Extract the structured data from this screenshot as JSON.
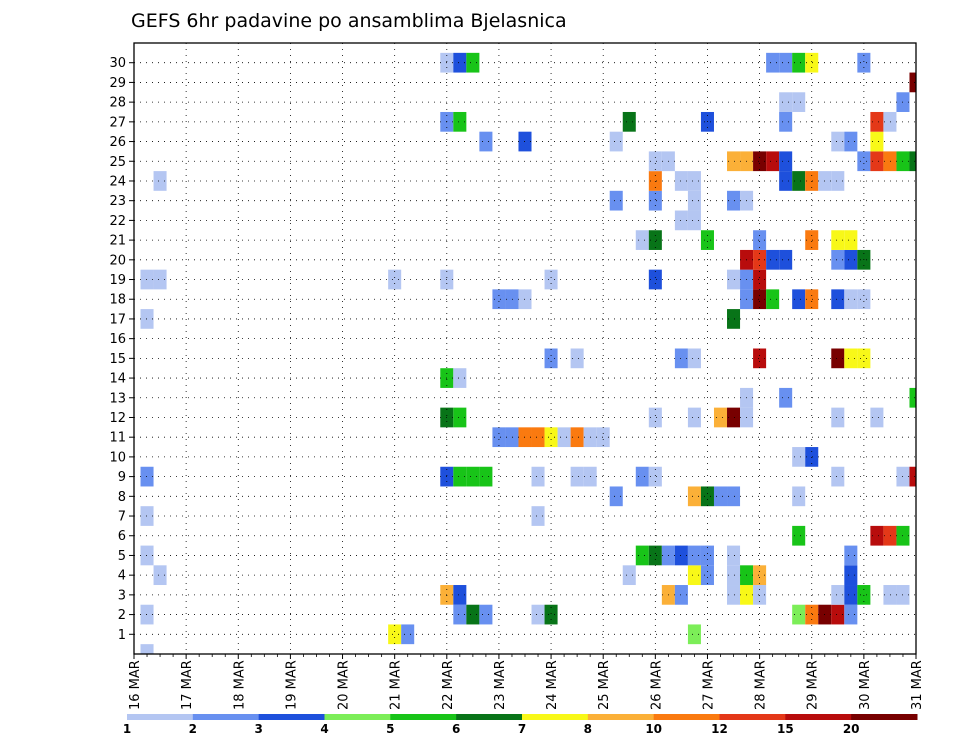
{
  "chart_data": {
    "type": "heatmap",
    "title": "GEFS 6hr padavine po ansamblima Bjelasnica",
    "xlabel": "",
    "ylabel": "",
    "x_range": [
      "16 MAR 00z",
      "31 MAR 00z"
    ],
    "x_step": "6hr",
    "x_ticks": [
      "16 MAR",
      "17 MAR",
      "18 MAR",
      "19 MAR",
      "20 MAR",
      "21 MAR",
      "22 MAR",
      "23 MAR",
      "24 MAR",
      "25 MAR",
      "26 MAR",
      "27 MAR",
      "28 MAR",
      "29 MAR",
      "30 MAR",
      "31 MAR"
    ],
    "y_ticks": [
      "1",
      "2",
      "3",
      "4",
      "5",
      "6",
      "7",
      "8",
      "9",
      "10",
      "11",
      "12",
      "13",
      "14",
      "15",
      "16",
      "17",
      "18",
      "19",
      "20",
      "21",
      "22",
      "23",
      "24",
      "25",
      "26",
      "27",
      "28",
      "29",
      "30"
    ],
    "legend_placement": "bottom",
    "grid": "dotted",
    "colorbar": {
      "labels": [
        "1",
        "2",
        "3",
        "4",
        "5",
        "6",
        "7",
        "8",
        "10",
        "12",
        "15",
        "20"
      ],
      "colors": [
        "#b4c6f2",
        "#6890f0",
        "#1e50dc",
        "#7cee58",
        "#18c418",
        "#087418",
        "#f8f818",
        "#fbb038",
        "#fa7a10",
        "#e43818",
        "#b80c0c",
        "#780000"
      ]
    },
    "cells": [
      [
        "16 MAR 06z",
        0,
        1
      ],
      [
        "21 MAR 00z",
        1,
        7
      ],
      [
        "21 MAR 06z",
        1,
        2
      ],
      [
        "26 MAR 18z",
        1,
        4
      ],
      [
        "16 MAR 06z",
        2,
        1
      ],
      [
        "22 MAR 06z",
        2,
        2
      ],
      [
        "22 MAR 12z",
        2,
        6
      ],
      [
        "22 MAR 18z",
        2,
        2
      ],
      [
        "23 MAR 18z",
        2,
        1
      ],
      [
        "24 MAR 00z",
        2,
        6
      ],
      [
        "28 MAR 18z",
        2,
        4
      ],
      [
        "29 MAR 00z",
        2,
        10
      ],
      [
        "29 MAR 06z",
        2,
        20
      ],
      [
        "29 MAR 12z",
        2,
        15
      ],
      [
        "29 MAR 18z",
        2,
        2
      ],
      [
        "22 MAR 00z",
        3,
        8
      ],
      [
        "22 MAR 06z",
        3,
        3
      ],
      [
        "26 MAR 06z",
        3,
        8
      ],
      [
        "26 MAR 12z",
        3,
        2
      ],
      [
        "27 MAR 12z",
        3,
        1
      ],
      [
        "27 MAR 18z",
        3,
        7
      ],
      [
        "28 MAR 00z",
        3,
        1
      ],
      [
        "29 MAR 12z",
        3,
        1
      ],
      [
        "29 MAR 18z",
        3,
        3
      ],
      [
        "30 MAR 00z",
        3,
        5
      ],
      [
        "30 MAR 12z",
        3,
        1
      ],
      [
        "30 MAR 18z",
        3,
        1
      ],
      [
        "16 MAR 12z",
        4,
        1
      ],
      [
        "25 MAR 12z",
        4,
        1
      ],
      [
        "26 MAR 18z",
        4,
        7
      ],
      [
        "27 MAR 00z",
        4,
        2
      ],
      [
        "27 MAR 12z",
        4,
        1
      ],
      [
        "27 MAR 18z",
        4,
        5
      ],
      [
        "28 MAR 00z",
        4,
        8
      ],
      [
        "29 MAR 18z",
        4,
        3
      ],
      [
        "16 MAR 06z",
        5,
        1
      ],
      [
        "25 MAR 18z",
        5,
        5
      ],
      [
        "26 MAR 00z",
        5,
        6
      ],
      [
        "26 MAR 06z",
        5,
        2
      ],
      [
        "26 MAR 12z",
        5,
        3
      ],
      [
        "26 MAR 18z",
        5,
        2
      ],
      [
        "27 MAR 00z",
        5,
        2
      ],
      [
        "27 MAR 12z",
        5,
        1
      ],
      [
        "29 MAR 18z",
        5,
        2
      ],
      [
        "28 MAR 18z",
        6,
        5
      ],
      [
        "30 MAR 06z",
        6,
        15
      ],
      [
        "30 MAR 12z",
        6,
        12
      ],
      [
        "30 MAR 18z",
        6,
        5
      ],
      [
        "16 MAR 06z",
        7,
        1
      ],
      [
        "23 MAR 18z",
        7,
        1
      ],
      [
        "25 MAR 06z",
        8,
        2
      ],
      [
        "26 MAR 18z",
        8,
        8
      ],
      [
        "27 MAR 00z",
        8,
        6
      ],
      [
        "27 MAR 06z",
        8,
        2
      ],
      [
        "27 MAR 12z",
        8,
        2
      ],
      [
        "28 MAR 18z",
        8,
        1
      ],
      [
        "16 MAR 06z",
        9,
        2
      ],
      [
        "22 MAR 00z",
        9,
        3
      ],
      [
        "22 MAR 06z",
        9,
        5
      ],
      [
        "22 MAR 12z",
        9,
        5
      ],
      [
        "22 MAR 18z",
        9,
        5
      ],
      [
        "23 MAR 18z",
        9,
        1
      ],
      [
        "24 MAR 12z",
        9,
        1
      ],
      [
        "24 MAR 18z",
        9,
        1
      ],
      [
        "25 MAR 18z",
        9,
        2
      ],
      [
        "26 MAR 00z",
        9,
        1
      ],
      [
        "29 MAR 12z",
        9,
        1
      ],
      [
        "30 MAR 18z",
        9,
        1
      ],
      [
        "31 MAR 00z",
        9,
        15
      ],
      [
        "28 MAR 18z",
        10,
        1
      ],
      [
        "29 MAR 00z",
        10,
        3
      ],
      [
        "23 MAR 00z",
        11,
        2
      ],
      [
        "23 MAR 06z",
        11,
        2
      ],
      [
        "23 MAR 12z",
        11,
        10
      ],
      [
        "23 MAR 18z",
        11,
        10
      ],
      [
        "24 MAR 00z",
        11,
        7
      ],
      [
        "24 MAR 06z",
        11,
        1
      ],
      [
        "24 MAR 12z",
        11,
        10
      ],
      [
        "24 MAR 18z",
        11,
        1
      ],
      [
        "25 MAR 00z",
        11,
        1
      ],
      [
        "22 MAR 00z",
        12,
        6
      ],
      [
        "22 MAR 06z",
        12,
        5
      ],
      [
        "26 MAR 00z",
        12,
        1
      ],
      [
        "26 MAR 18z",
        12,
        1
      ],
      [
        "27 MAR 06z",
        12,
        8
      ],
      [
        "27 MAR 12z",
        12,
        20
      ],
      [
        "27 MAR 18z",
        12,
        1
      ],
      [
        "29 MAR 12z",
        12,
        1
      ],
      [
        "30 MAR 06z",
        12,
        1
      ],
      [
        "27 MAR 18z",
        13,
        1
      ],
      [
        "28 MAR 12z",
        13,
        2
      ],
      [
        "31 MAR 00z",
        13,
        5
      ],
      [
        "22 MAR 00z",
        14,
        5
      ],
      [
        "22 MAR 06z",
        14,
        1
      ],
      [
        "24 MAR 00z",
        15,
        2
      ],
      [
        "24 MAR 12z",
        15,
        1
      ],
      [
        "26 MAR 12z",
        15,
        2
      ],
      [
        "26 MAR 18z",
        15,
        1
      ],
      [
        "28 MAR 00z",
        15,
        15
      ],
      [
        "29 MAR 12z",
        15,
        20
      ],
      [
        "29 MAR 18z",
        15,
        7
      ],
      [
        "30 MAR 00z",
        15,
        7
      ],
      [
        "16 MAR 06z",
        17,
        1
      ],
      [
        "27 MAR 12z",
        17,
        6
      ],
      [
        "23 MAR 00z",
        18,
        2
      ],
      [
        "23 MAR 06z",
        18,
        2
      ],
      [
        "23 MAR 12z",
        18,
        1
      ],
      [
        "27 MAR 18z",
        18,
        2
      ],
      [
        "28 MAR 00z",
        18,
        20
      ],
      [
        "28 MAR 06z",
        18,
        5
      ],
      [
        "28 MAR 18z",
        18,
        3
      ],
      [
        "29 MAR 00z",
        18,
        10
      ],
      [
        "29 MAR 12z",
        18,
        3
      ],
      [
        "29 MAR 18z",
        18,
        1
      ],
      [
        "30 MAR 00z",
        18,
        1
      ],
      [
        "16 MAR 06z",
        19,
        1
      ],
      [
        "16 MAR 12z",
        19,
        1
      ],
      [
        "21 MAR 00z",
        19,
        1
      ],
      [
        "22 MAR 00z",
        19,
        1
      ],
      [
        "24 MAR 00z",
        19,
        1
      ],
      [
        "26 MAR 00z",
        19,
        3
      ],
      [
        "27 MAR 12z",
        19,
        1
      ],
      [
        "27 MAR 18z",
        19,
        2
      ],
      [
        "28 MAR 00z",
        19,
        15
      ],
      [
        "27 MAR 18z",
        20,
        15
      ],
      [
        "28 MAR 00z",
        20,
        12
      ],
      [
        "28 MAR 06z",
        20,
        3
      ],
      [
        "28 MAR 12z",
        20,
        3
      ],
      [
        "29 MAR 12z",
        20,
        2
      ],
      [
        "29 MAR 18z",
        20,
        3
      ],
      [
        "30 MAR 00z",
        20,
        6
      ],
      [
        "25 MAR 18z",
        21,
        1
      ],
      [
        "26 MAR 00z",
        21,
        6
      ],
      [
        "27 MAR 00z",
        21,
        5
      ],
      [
        "28 MAR 00z",
        21,
        2
      ],
      [
        "29 MAR 00z",
        21,
        10
      ],
      [
        "29 MAR 12z",
        21,
        7
      ],
      [
        "29 MAR 18z",
        21,
        7
      ],
      [
        "26 MAR 12z",
        22,
        1
      ],
      [
        "26 MAR 18z",
        22,
        1
      ],
      [
        "25 MAR 06z",
        23,
        2
      ],
      [
        "26 MAR 00z",
        23,
        2
      ],
      [
        "26 MAR 18z",
        23,
        1
      ],
      [
        "27 MAR 12z",
        23,
        2
      ],
      [
        "27 MAR 18z",
        23,
        1
      ],
      [
        "16 MAR 12z",
        24,
        1
      ],
      [
        "26 MAR 00z",
        24,
        10
      ],
      [
        "26 MAR 12z",
        24,
        1
      ],
      [
        "26 MAR 18z",
        24,
        1
      ],
      [
        "28 MAR 12z",
        24,
        3
      ],
      [
        "28 MAR 18z",
        24,
        6
      ],
      [
        "29 MAR 00z",
        24,
        10
      ],
      [
        "29 MAR 06z",
        24,
        1
      ],
      [
        "29 MAR 12z",
        24,
        1
      ],
      [
        "26 MAR 00z",
        25,
        1
      ],
      [
        "26 MAR 06z",
        25,
        1
      ],
      [
        "27 MAR 12z",
        25,
        8
      ],
      [
        "27 MAR 18z",
        25,
        8
      ],
      [
        "28 MAR 00z",
        25,
        20
      ],
      [
        "28 MAR 06z",
        25,
        15
      ],
      [
        "28 MAR 12z",
        25,
        3
      ],
      [
        "30 MAR 00z",
        25,
        2
      ],
      [
        "30 MAR 06z",
        25,
        12
      ],
      [
        "30 MAR 12z",
        25,
        10
      ],
      [
        "30 MAR 18z",
        25,
        5
      ],
      [
        "31 MAR 00z",
        25,
        6
      ],
      [
        "22 MAR 18z",
        26,
        2
      ],
      [
        "23 MAR 12z",
        26,
        3
      ],
      [
        "25 MAR 06z",
        26,
        1
      ],
      [
        "29 MAR 12z",
        26,
        1
      ],
      [
        "29 MAR 18z",
        26,
        2
      ],
      [
        "30 MAR 06z",
        26,
        7
      ],
      [
        "22 MAR 00z",
        27,
        2
      ],
      [
        "22 MAR 06z",
        27,
        5
      ],
      [
        "25 MAR 12z",
        27,
        6
      ],
      [
        "27 MAR 00z",
        27,
        3
      ],
      [
        "28 MAR 12z",
        27,
        2
      ],
      [
        "30 MAR 06z",
        27,
        12
      ],
      [
        "30 MAR 12z",
        27,
        1
      ],
      [
        "28 MAR 12z",
        28,
        1
      ],
      [
        "28 MAR 18z",
        28,
        1
      ],
      [
        "30 MAR 18z",
        28,
        2
      ],
      [
        "31 MAR 00z",
        29,
        20
      ],
      [
        "22 MAR 00z",
        30,
        1
      ],
      [
        "22 MAR 06z",
        30,
        3
      ],
      [
        "22 MAR 12z",
        30,
        5
      ],
      [
        "28 MAR 06z",
        30,
        2
      ],
      [
        "28 MAR 12z",
        30,
        2
      ],
      [
        "28 MAR 18z",
        30,
        5
      ],
      [
        "29 MAR 00z",
        30,
        7
      ],
      [
        "30 MAR 00z",
        30,
        2
      ]
    ]
  }
}
